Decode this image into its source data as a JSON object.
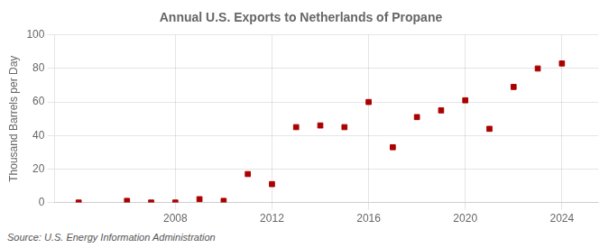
{
  "chart_data": {
    "type": "scatter",
    "title": "Annual U.S. Exports to Netherlands of Propane",
    "ylabel": "Thousand Barrels per Day",
    "source": "Source: U.S. Energy Information Administration",
    "x": [
      2004,
      2006,
      2007,
      2008,
      2009,
      2010,
      2011,
      2012,
      2013,
      2014,
      2015,
      2016,
      2017,
      2018,
      2019,
      2020,
      2021,
      2022,
      2023,
      2024
    ],
    "values": [
      0,
      1,
      0,
      0,
      2,
      1,
      17,
      11,
      45,
      46,
      45,
      60,
      33,
      51,
      55,
      61,
      44,
      69,
      80,
      83
    ],
    "color": "#aa0000",
    "marker": "square",
    "xlim": [
      2003.0,
      2025.5
    ],
    "xticks": [
      2008,
      2012,
      2016,
      2020,
      2024
    ],
    "ylim": [
      0,
      100
    ],
    "yticks": [
      0,
      20,
      40,
      60,
      80,
      100
    ],
    "grid": true
  }
}
